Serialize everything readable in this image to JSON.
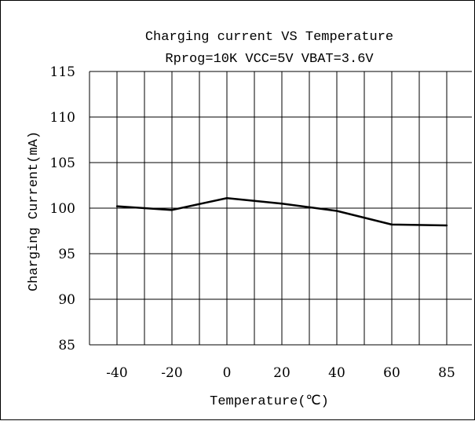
{
  "chart_data": {
    "type": "line",
    "title": "Charging current VS Temperature",
    "subtitle": "Rprog=10K VCC=5V VBAT=3.6V",
    "xlabel": "Temperature(℃)",
    "ylabel": "Charging Current(mA)",
    "categories": [
      "-40",
      "-20",
      "0",
      "20",
      "40",
      "60",
      "85"
    ],
    "ylim": [
      85,
      115
    ],
    "yticks": [
      "115",
      "110",
      "105",
      "100",
      "95",
      "90",
      "85"
    ],
    "grid": true,
    "series": [
      {
        "values": [
          100.2,
          99.8,
          101.1,
          100.5,
          99.7,
          98.2,
          98.1
        ]
      }
    ],
    "line_color": "#000000"
  }
}
